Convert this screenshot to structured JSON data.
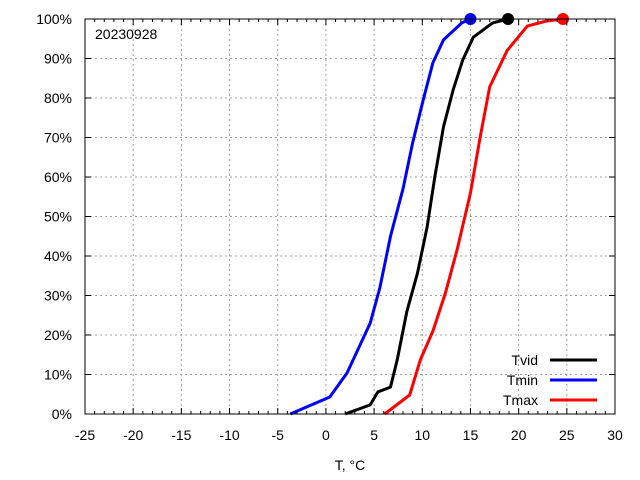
{
  "chart_data": {
    "type": "line",
    "title": "20230928",
    "xlabel": "T, °C",
    "ylabel": "",
    "xlim": [
      -25,
      30
    ],
    "ylim": [
      0,
      100
    ],
    "grid": true,
    "legend_position": "bottom-right",
    "xticks": [
      "-25",
      "-20",
      "-15",
      "-10",
      "-5",
      "0",
      "5",
      "10",
      "15",
      "20",
      "25",
      "30"
    ],
    "yticks": [
      "0%",
      "10%",
      "20%",
      "30%",
      "40%",
      "50%",
      "60%",
      "70%",
      "80%",
      "90%",
      "100%"
    ],
    "series": [
      {
        "name": "Tvid",
        "color": "#000000",
        "x": [
          2.0,
          4.6,
          5.4,
          6.7,
          7.4,
          8.4,
          9.5,
          10.5,
          11.3,
          12.2,
          13.2,
          14.2,
          15.3,
          17.3,
          18.9
        ],
        "y": [
          0,
          2.3,
          5.6,
          6.8,
          13.7,
          26,
          35.7,
          47.3,
          60,
          72.7,
          82,
          89.6,
          95.4,
          99,
          100
        ]
      },
      {
        "name": "Tmin",
        "color": "#0000ff",
        "x": [
          -3.7,
          0.4,
          2.2,
          4.6,
          5.6,
          6.7,
          8.0,
          9.0,
          10.1,
          11.1,
          12.2,
          14.1,
          15.0
        ],
        "y": [
          0,
          4.3,
          10.4,
          23,
          32,
          45,
          57,
          68.6,
          79.5,
          88.9,
          94.7,
          99,
          100
        ]
      },
      {
        "name": "Tmax",
        "color": "#ff0000",
        "x": [
          6.1,
          8.7,
          9.8,
          11.1,
          12.4,
          13.6,
          15.0,
          16.0,
          17.0,
          18.8,
          20.9,
          22.9,
          24.6
        ],
        "y": [
          0,
          4.8,
          13.7,
          21,
          30.6,
          41.5,
          56,
          70,
          82.8,
          92,
          98.2,
          99.5,
          100
        ]
      }
    ]
  }
}
